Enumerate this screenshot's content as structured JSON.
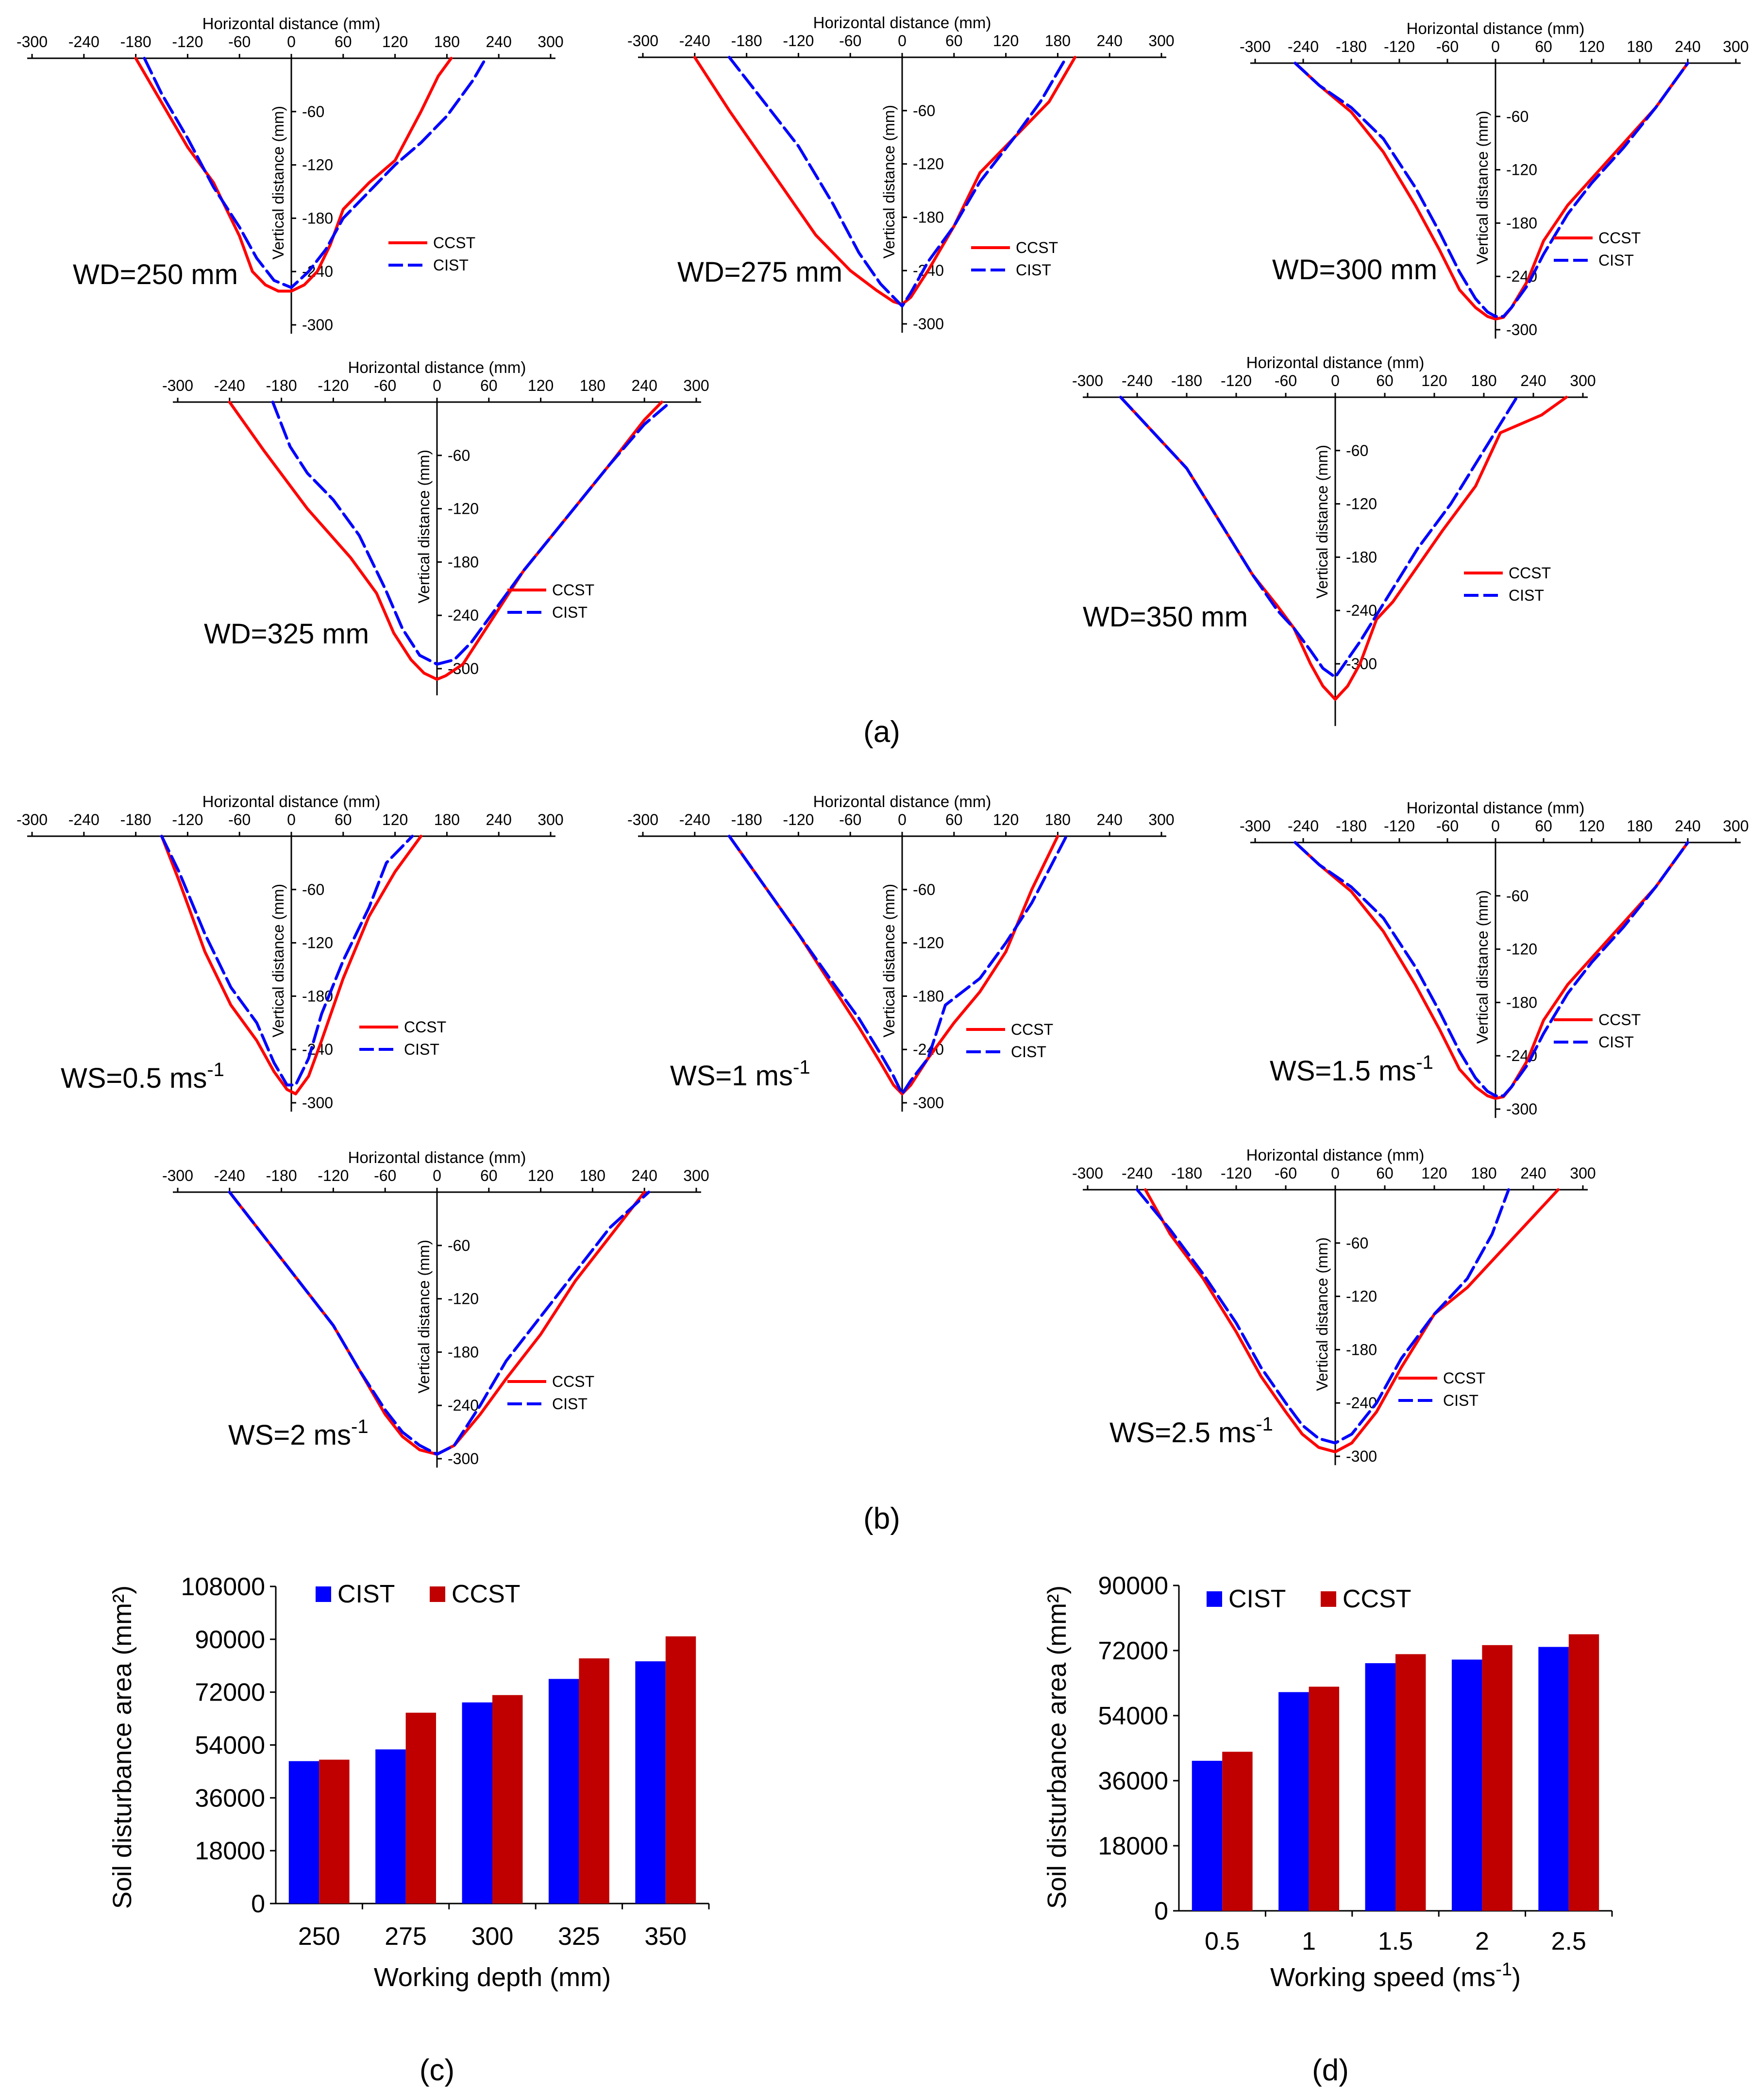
{
  "captions": {
    "a": "(a)",
    "b": "(b)",
    "c": "(c)",
    "d": "(d)"
  },
  "profile_axes": {
    "xlabel": "Horizontal distance (mm)",
    "ylabel": "Vertical distance (mm)",
    "x_ticks": [
      "-300",
      "-240",
      "-180",
      "-120",
      "-60",
      "0",
      "60",
      "120",
      "180",
      "240",
      "300"
    ],
    "y_ticks": [
      "-60",
      "-120",
      "-180",
      "-240",
      "-300"
    ]
  },
  "legend": {
    "ccst": "CCST",
    "cist": "CIST"
  },
  "colors": {
    "ccst": "#ff0000",
    "cist": "#0000ff",
    "bar_cist": "#0000ff",
    "bar_ccst": "#c00000"
  },
  "chart_data": [
    {
      "type": "line",
      "id": "wd250",
      "label": "WD=250 mm",
      "xlabel": "Horizontal distance (mm)",
      "ylabel": "Vertical distance (mm)",
      "xlim": [
        -300,
        300
      ],
      "ylim": [
        -310,
        0
      ],
      "series": [
        {
          "name": "CCST",
          "x": [
            -180,
            -150,
            -120,
            -90,
            -60,
            -45,
            -30,
            -15,
            0,
            15,
            30,
            45,
            60,
            90,
            120,
            150,
            170,
            185
          ],
          "y": [
            0,
            -50,
            -100,
            -140,
            -200,
            -240,
            -255,
            -262,
            -262,
            -255,
            -240,
            -210,
            -170,
            -140,
            -115,
            -60,
            -20,
            0
          ]
        },
        {
          "name": "CIST",
          "x": [
            -170,
            -150,
            -120,
            -90,
            -60,
            -40,
            -20,
            0,
            20,
            40,
            60,
            90,
            120,
            150,
            180,
            210,
            225
          ],
          "y": [
            0,
            -40,
            -90,
            -145,
            -190,
            -225,
            -250,
            -258,
            -240,
            -215,
            -180,
            -150,
            -120,
            -95,
            -65,
            -25,
            0
          ]
        }
      ]
    },
    {
      "type": "line",
      "id": "wd275",
      "label": "WD=275 mm",
      "xlabel": "Horizontal distance (mm)",
      "ylabel": "Vertical distance (mm)",
      "xlim": [
        -300,
        300
      ],
      "ylim": [
        -310,
        0
      ],
      "series": [
        {
          "name": "CCST",
          "x": [
            -240,
            -200,
            -150,
            -100,
            -60,
            -30,
            -10,
            0,
            10,
            30,
            60,
            90,
            130,
            170,
            200
          ],
          "y": [
            0,
            -60,
            -130,
            -200,
            -240,
            -262,
            -275,
            -278,
            -270,
            -240,
            -190,
            -130,
            -90,
            -50,
            0
          ]
        },
        {
          "name": "CIST",
          "x": [
            -200,
            -160,
            -120,
            -80,
            -50,
            -25,
            -10,
            0,
            10,
            30,
            60,
            90,
            130,
            160,
            190
          ],
          "y": [
            0,
            -50,
            -100,
            -165,
            -220,
            -255,
            -270,
            -280,
            -265,
            -230,
            -190,
            -140,
            -90,
            -50,
            0
          ]
        }
      ]
    },
    {
      "type": "line",
      "id": "wd300",
      "label": "WD=300 mm",
      "xlabel": "Horizontal distance (mm)",
      "ylabel": "Vertical distance (mm)",
      "xlim": [
        -300,
        300
      ],
      "ylim": [
        -310,
        0
      ],
      "series": [
        {
          "name": "CCST",
          "x": [
            -250,
            -220,
            -180,
            -140,
            -100,
            -70,
            -45,
            -25,
            -10,
            0,
            10,
            20,
            40,
            60,
            90,
            120,
            160,
            200,
            240
          ],
          "y": [
            0,
            -25,
            -55,
            -100,
            -160,
            -210,
            -255,
            -275,
            -285,
            -288,
            -286,
            -275,
            -245,
            -200,
            -160,
            -130,
            -90,
            -50,
            0
          ]
        },
        {
          "name": "CIST",
          "x": [
            -250,
            -220,
            -180,
            -140,
            -100,
            -70,
            -45,
            -25,
            -10,
            0,
            10,
            20,
            40,
            60,
            90,
            120,
            160,
            200,
            240
          ],
          "y": [
            0,
            -25,
            -50,
            -85,
            -140,
            -190,
            -235,
            -265,
            -280,
            -285,
            -285,
            -275,
            -250,
            -215,
            -170,
            -135,
            -95,
            -50,
            0
          ]
        }
      ]
    },
    {
      "type": "line",
      "id": "wd325",
      "label": "WD=325 mm",
      "xlabel": "Horizontal distance (mm)",
      "ylabel": "Vertical distance (mm)",
      "xlim": [
        -300,
        300
      ],
      "ylim": [
        -330,
        0
      ],
      "series": [
        {
          "name": "CCST",
          "x": [
            -240,
            -200,
            -150,
            -100,
            -70,
            -50,
            -30,
            -15,
            0,
            10,
            30,
            60,
            100,
            150,
            200,
            240,
            260
          ],
          "y": [
            0,
            -55,
            -120,
            -175,
            -215,
            -260,
            -290,
            -305,
            -312,
            -308,
            -295,
            -250,
            -190,
            -130,
            -70,
            -20,
            0
          ]
        },
        {
          "name": "CIST",
          "x": [
            -190,
            -170,
            -150,
            -120,
            -90,
            -60,
            -40,
            -20,
            0,
            20,
            40,
            70,
            100,
            150,
            200,
            240,
            270
          ],
          "y": [
            0,
            -50,
            -80,
            -110,
            -150,
            -210,
            -255,
            -285,
            -295,
            -290,
            -270,
            -230,
            -190,
            -130,
            -70,
            -25,
            0
          ]
        }
      ]
    },
    {
      "type": "line",
      "id": "wd350",
      "label": "WD=350 mm",
      "xlabel": "Horizontal distance (mm)",
      "ylabel": "Vertical distance (mm)",
      "xlim": [
        -300,
        300
      ],
      "ylim": [
        -370,
        0
      ],
      "series": [
        {
          "name": "CCST",
          "x": [
            -260,
            -220,
            -180,
            -140,
            -100,
            -70,
            -50,
            -40,
            -30,
            -15,
            0,
            15,
            30,
            50,
            70,
            100,
            130,
            170,
            200,
            250,
            280
          ],
          "y": [
            0,
            -40,
            -80,
            -140,
            -200,
            -235,
            -260,
            -280,
            -300,
            -325,
            -340,
            -325,
            -300,
            -250,
            -230,
            -190,
            -150,
            -100,
            -40,
            -20,
            0
          ]
        },
        {
          "name": "CIST",
          "x": [
            -260,
            -220,
            -180,
            -140,
            -100,
            -70,
            -50,
            -30,
            -15,
            0,
            15,
            30,
            60,
            100,
            140,
            180,
            220
          ],
          "y": [
            0,
            -40,
            -80,
            -140,
            -200,
            -240,
            -260,
            -285,
            -305,
            -315,
            -295,
            -275,
            -230,
            -170,
            -120,
            -60,
            0
          ]
        }
      ]
    },
    {
      "type": "line",
      "id": "ws05",
      "label": "WS=0.5 ms",
      "label_sup": "-1",
      "xlabel": "Horizontal distance (mm)",
      "ylabel": "Vertical distance (mm)",
      "xlim": [
        -300,
        300
      ],
      "ylim": [
        -310,
        0
      ],
      "series": [
        {
          "name": "CCST",
          "x": [
            -150,
            -130,
            -100,
            -70,
            -40,
            -20,
            -5,
            5,
            20,
            35,
            60,
            90,
            120,
            150
          ],
          "y": [
            0,
            -50,
            -130,
            -190,
            -230,
            -265,
            -285,
            -290,
            -270,
            -230,
            -160,
            -90,
            -40,
            0
          ]
        },
        {
          "name": "CIST",
          "x": [
            -150,
            -130,
            -100,
            -70,
            -40,
            -20,
            -5,
            5,
            20,
            35,
            60,
            90,
            110,
            140
          ],
          "y": [
            0,
            -40,
            -110,
            -170,
            -210,
            -255,
            -280,
            -280,
            -250,
            -200,
            -140,
            -80,
            -30,
            0
          ]
        }
      ]
    },
    {
      "type": "line",
      "id": "ws1",
      "label": "WS=1 ms",
      "label_sup": "-1",
      "xlabel": "Horizontal distance (mm)",
      "ylabel": "Vertical distance (mm)",
      "xlim": [
        -300,
        300
      ],
      "ylim": [
        -310,
        0
      ],
      "series": [
        {
          "name": "CCST",
          "x": [
            -200,
            -160,
            -120,
            -80,
            -50,
            -25,
            -10,
            0,
            10,
            30,
            60,
            90,
            120,
            150,
            180
          ],
          "y": [
            0,
            -55,
            -110,
            -170,
            -215,
            -255,
            -280,
            -290,
            -280,
            -250,
            -210,
            -175,
            -130,
            -60,
            0
          ]
        },
        {
          "name": "CIST",
          "x": [
            -200,
            -160,
            -120,
            -80,
            -50,
            -25,
            -10,
            0,
            10,
            30,
            50,
            90,
            120,
            150,
            190
          ],
          "y": [
            0,
            -55,
            -110,
            -165,
            -205,
            -245,
            -270,
            -290,
            -275,
            -250,
            -190,
            -160,
            -120,
            -75,
            0
          ]
        }
      ]
    },
    {
      "type": "line",
      "id": "ws15",
      "label": "WS=1.5 ms",
      "label_sup": "-1",
      "xlabel": "Horizontal distance (mm)",
      "ylabel": "Vertical distance (mm)",
      "xlim": [
        -300,
        300
      ],
      "ylim": [
        -310,
        0
      ],
      "series": [
        {
          "name": "CCST",
          "x": [
            -250,
            -220,
            -180,
            -140,
            -100,
            -70,
            -45,
            -25,
            -10,
            0,
            10,
            20,
            40,
            60,
            90,
            120,
            160,
            200,
            240
          ],
          "y": [
            0,
            -25,
            -55,
            -100,
            -160,
            -210,
            -255,
            -275,
            -285,
            -288,
            -286,
            -275,
            -245,
            -200,
            -160,
            -130,
            -90,
            -50,
            0
          ]
        },
        {
          "name": "CIST",
          "x": [
            -250,
            -220,
            -180,
            -140,
            -100,
            -70,
            -45,
            -25,
            -10,
            0,
            10,
            20,
            40,
            60,
            90,
            120,
            160,
            200,
            240
          ],
          "y": [
            0,
            -25,
            -50,
            -85,
            -140,
            -190,
            -235,
            -265,
            -280,
            -285,
            -285,
            -275,
            -250,
            -215,
            -170,
            -135,
            -95,
            -50,
            0
          ]
        }
      ]
    },
    {
      "type": "line",
      "id": "ws2",
      "label": "WS=2 ms",
      "label_sup": "-1",
      "xlabel": "Horizontal distance (mm)",
      "ylabel": "Vertical distance (mm)",
      "xlim": [
        -300,
        300
      ],
      "ylim": [
        -310,
        0
      ],
      "series": [
        {
          "name": "CCST",
          "x": [
            -240,
            -200,
            -160,
            -120,
            -90,
            -60,
            -40,
            -20,
            0,
            20,
            50,
            80,
            120,
            160,
            200,
            240
          ],
          "y": [
            0,
            -50,
            -100,
            -150,
            -200,
            -250,
            -275,
            -290,
            -295,
            -285,
            -250,
            -210,
            -160,
            -100,
            -50,
            0
          ]
        },
        {
          "name": "CIST",
          "x": [
            -240,
            -200,
            -160,
            -120,
            -90,
            -60,
            -40,
            -20,
            0,
            20,
            50,
            80,
            120,
            160,
            200,
            245
          ],
          "y": [
            0,
            -50,
            -100,
            -150,
            -200,
            -245,
            -270,
            -285,
            -295,
            -285,
            -240,
            -190,
            -140,
            -90,
            -40,
            0
          ]
        }
      ]
    },
    {
      "type": "line",
      "id": "ws25",
      "label": "WS=2.5 ms",
      "label_sup": "-1",
      "xlabel": "Horizontal distance (mm)",
      "ylabel": "Vertical distance (mm)",
      "xlim": [
        -300,
        300
      ],
      "ylim": [
        -310,
        0
      ],
      "series": [
        {
          "name": "CCST",
          "x": [
            -230,
            -200,
            -160,
            -120,
            -90,
            -60,
            -40,
            -20,
            0,
            20,
            50,
            80,
            120,
            160,
            200,
            240,
            270
          ],
          "y": [
            0,
            -50,
            -100,
            -160,
            -210,
            -250,
            -275,
            -290,
            -295,
            -285,
            -250,
            -200,
            -140,
            -110,
            -70,
            -30,
            0
          ]
        },
        {
          "name": "CIST",
          "x": [
            -240,
            -200,
            -160,
            -120,
            -90,
            -60,
            -40,
            -20,
            0,
            20,
            50,
            80,
            120,
            160,
            190,
            210
          ],
          "y": [
            0,
            -45,
            -95,
            -150,
            -200,
            -240,
            -265,
            -280,
            -285,
            -275,
            -240,
            -190,
            -140,
            -100,
            -50,
            0
          ]
        }
      ]
    },
    {
      "type": "bar",
      "id": "bar_c",
      "xlabel": "Working depth (mm)",
      "ylabel": "Soil disturbance area (mm²)",
      "ylim": [
        0,
        108000
      ],
      "categories": [
        "250",
        "275",
        "300",
        "325",
        "350"
      ],
      "y_ticks": [
        "0",
        "18000",
        "36000",
        "54000",
        "72000",
        "90000",
        "108000"
      ],
      "series": [
        {
          "name": "CIST",
          "values": [
            48500,
            52500,
            68500,
            76500,
            82500
          ]
        },
        {
          "name": "CCST",
          "values": [
            49000,
            65000,
            71000,
            83500,
            91000
          ]
        }
      ]
    },
    {
      "type": "bar",
      "id": "bar_d",
      "xlabel": "Working speed (ms",
      "xlabel_sup": "-1",
      "xlabel_end": ")",
      "ylabel": "Soil disturbance area (mm²)",
      "ylim": [
        0,
        90000
      ],
      "categories": [
        "0.5",
        "1",
        "1.5",
        "2",
        "2.5"
      ],
      "y_ticks": [
        "0",
        "18000",
        "36000",
        "54000",
        "72000",
        "90000"
      ],
      "series": [
        {
          "name": "CIST",
          "values": [
            41500,
            60500,
            68500,
            69500,
            73000
          ]
        },
        {
          "name": "CCST",
          "values": [
            44000,
            62000,
            71000,
            73500,
            76500
          ]
        }
      ]
    }
  ]
}
